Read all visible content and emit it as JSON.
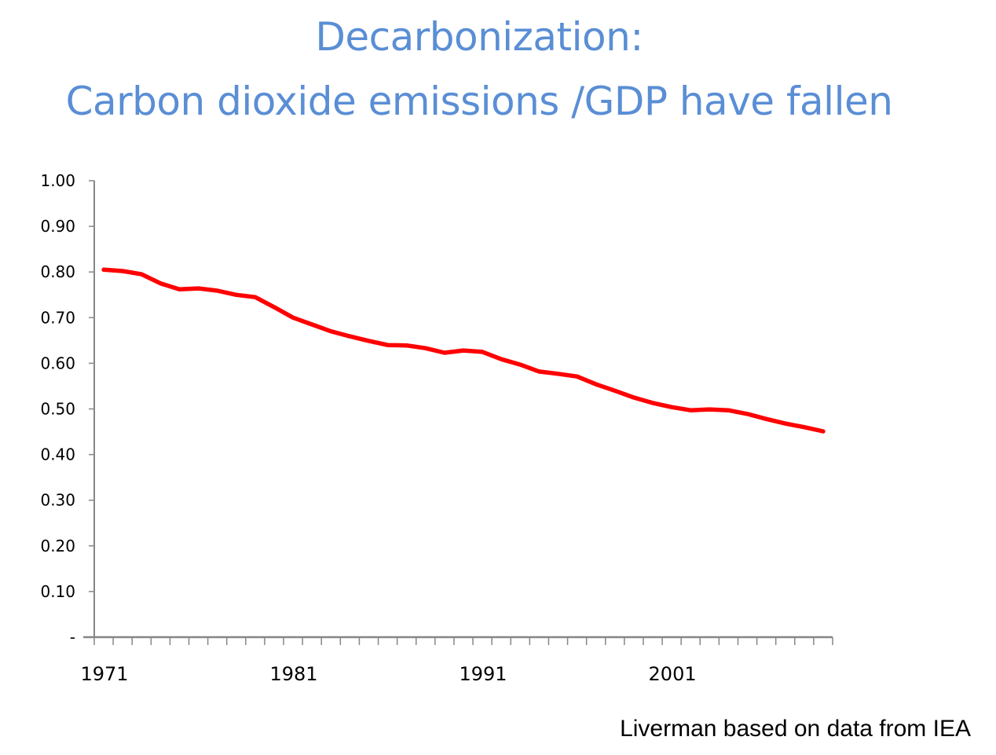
{
  "slide": {
    "title_line1": "Decarbonization:",
    "title_line2": "Carbon dioxide emissions /GDP have fallen",
    "credit": "Liverman based on data from IEA"
  },
  "colors": {
    "title": "#5a8ed5",
    "line": "#ff0000",
    "axis": "#868686",
    "text": "#000000"
  },
  "chart_data": {
    "type": "line",
    "title": "Decarbonization: Carbon dioxide emissions /GDP have fallen",
    "xlabel": "",
    "ylabel": "",
    "ylim": [
      0,
      1.0
    ],
    "grid": false,
    "legend": "none",
    "y_tick_labels": [
      "-",
      "0.10",
      "0.20",
      "0.30",
      "0.40",
      "0.50",
      "0.60",
      "0.70",
      "0.80",
      "0.90",
      "1.00"
    ],
    "y_ticks": [
      0,
      0.1,
      0.2,
      0.3,
      0.4,
      0.5,
      0.6,
      0.7,
      0.8,
      0.9,
      1.0
    ],
    "x_tick_labels": [
      "1971",
      "1981",
      "1991",
      "2001"
    ],
    "x": [
      1971,
      1972,
      1973,
      1974,
      1975,
      1976,
      1977,
      1978,
      1979,
      1980,
      1981,
      1982,
      1983,
      1984,
      1985,
      1986,
      1987,
      1988,
      1989,
      1990,
      1991,
      1992,
      1993,
      1994,
      1995,
      1996,
      1997,
      1998,
      1999,
      2000,
      2001,
      2002,
      2003,
      2004,
      2005,
      2006,
      2007,
      2008,
      2009
    ],
    "series": [
      {
        "name": "CO2 emissions / GDP",
        "color": "#ff0000",
        "values": [
          0.805,
          0.802,
          0.795,
          0.775,
          0.762,
          0.764,
          0.759,
          0.75,
          0.745,
          0.723,
          0.7,
          0.685,
          0.67,
          0.659,
          0.649,
          0.64,
          0.639,
          0.633,
          0.623,
          0.628,
          0.625,
          0.609,
          0.597,
          0.582,
          0.577,
          0.571,
          0.554,
          0.54,
          0.525,
          0.513,
          0.504,
          0.497,
          0.499,
          0.497,
          0.489,
          0.478,
          0.468,
          0.46,
          0.451
        ]
      }
    ],
    "source": "Liverman based on data from IEA"
  }
}
